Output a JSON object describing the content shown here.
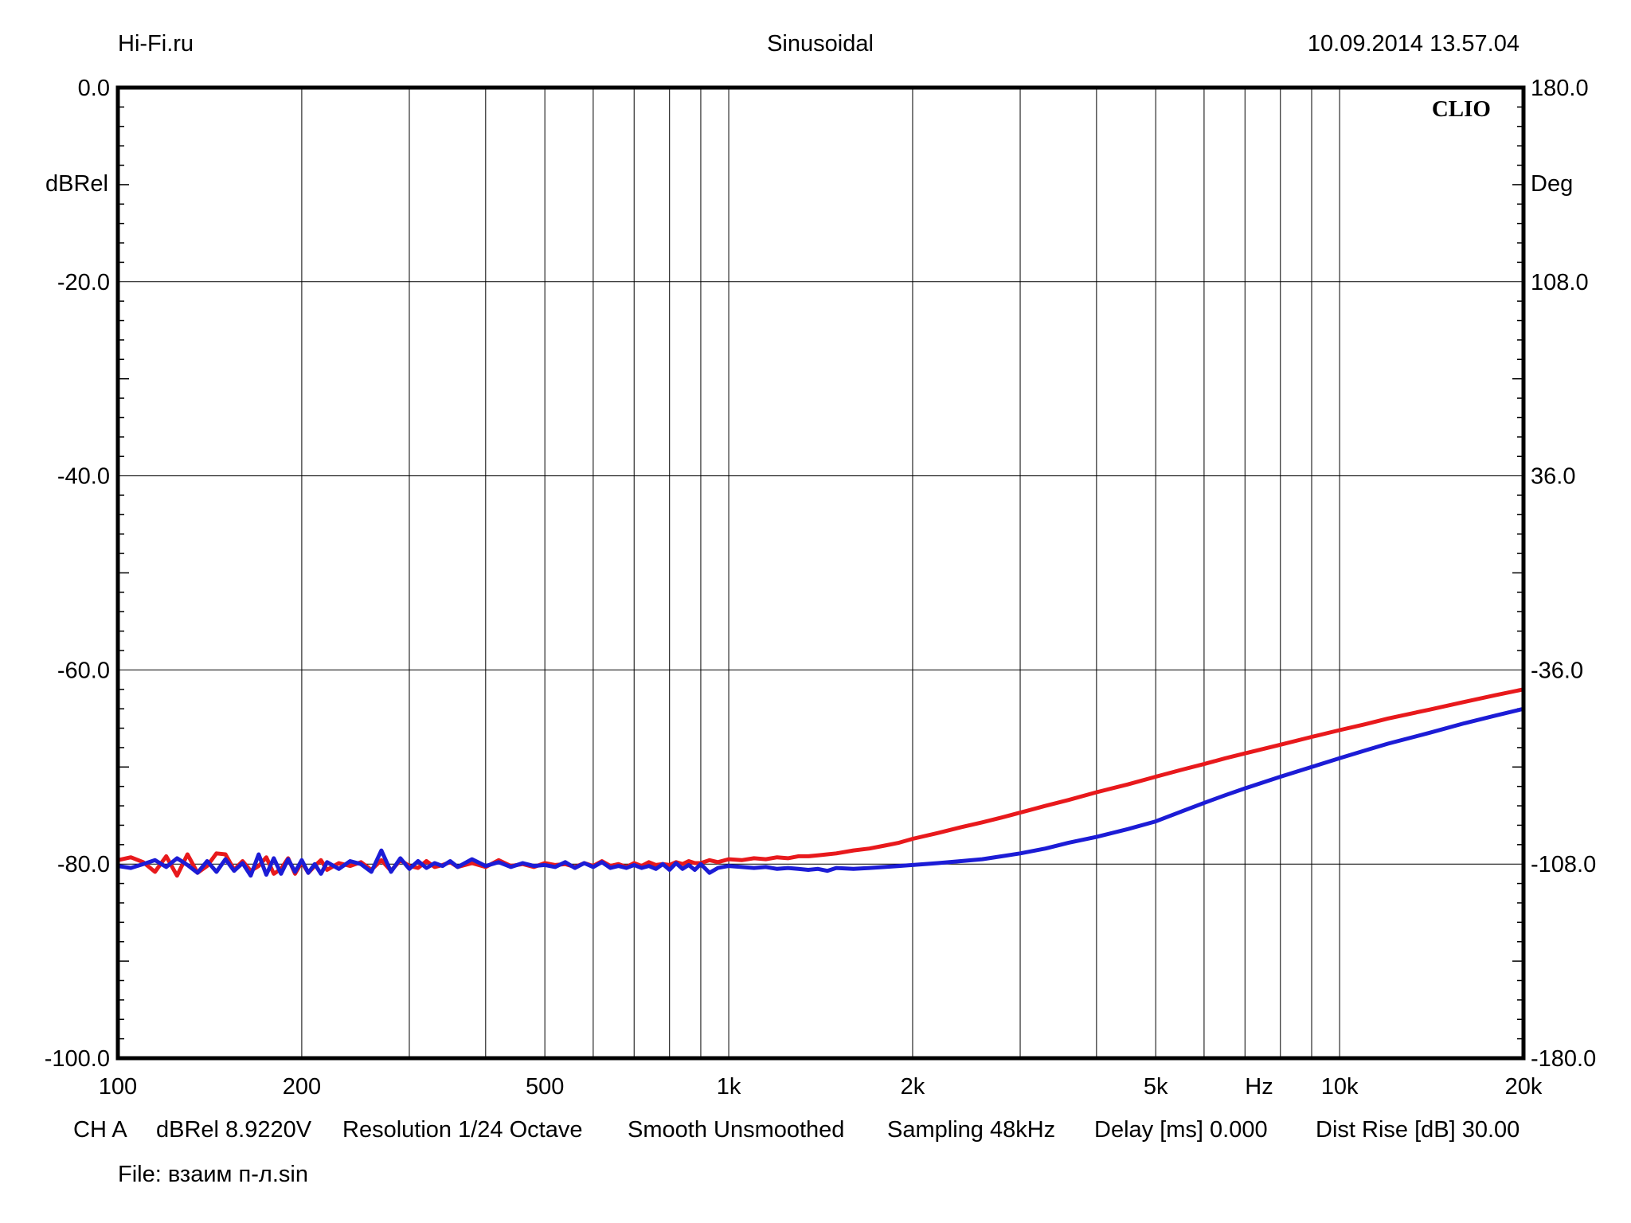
{
  "header": {
    "left": "Hi-Fi.ru",
    "center": "Sinusoidal",
    "right": "10.09.2014 13.57.04"
  },
  "brand": "CLIO",
  "footer": {
    "ch": "CH A",
    "unit": "dBRel 8.9220V",
    "resolution": "Resolution 1/24 Octave",
    "smooth": "Smooth Unsmoothed",
    "sampling": "Sampling 48kHz",
    "delay": "Delay [ms] 0.000",
    "dist": "Dist Rise [dB] 30.00",
    "file": "File: взаим п-л.sin"
  },
  "chart_data": {
    "type": "line",
    "x_scale": "log",
    "xlim": [
      100,
      20000
    ],
    "ylim": [
      -100,
      0
    ],
    "y2lim": [
      -180,
      180
    ],
    "ylabel": "dBRel",
    "y2label": "Deg",
    "xunit_label": "Hz",
    "x_ticks": [
      {
        "v": 100,
        "label": "100"
      },
      {
        "v": 200,
        "label": "200"
      },
      {
        "v": 500,
        "label": "500"
      },
      {
        "v": 1000,
        "label": "1k"
      },
      {
        "v": 2000,
        "label": "2k"
      },
      {
        "v": 5000,
        "label": "5k"
      },
      {
        "v": 10000,
        "label": "10k"
      },
      {
        "v": 20000,
        "label": "20k"
      }
    ],
    "y_ticks": [
      {
        "v": 0,
        "label": "0.0"
      },
      {
        "v": -20,
        "label": "-20.0"
      },
      {
        "v": -40,
        "label": "-40.0"
      },
      {
        "v": -60,
        "label": "-60.0"
      },
      {
        "v": -80,
        "label": "-80.0"
      },
      {
        "v": -100,
        "label": "-100.0"
      }
    ],
    "y2_ticks": [
      {
        "v": 180,
        "label": "180.0"
      },
      {
        "v": 108,
        "label": "108.0"
      },
      {
        "v": 36,
        "label": "36.0"
      },
      {
        "v": -36,
        "label": "-36.0"
      },
      {
        "v": -108,
        "label": "-108.0"
      },
      {
        "v": -180,
        "label": "-180.0"
      }
    ],
    "grid": true,
    "series": [
      {
        "color": "#e8191c",
        "x": [
          100,
          105,
          110,
          115,
          120,
          125,
          130,
          135,
          140,
          145,
          150,
          155,
          160,
          165,
          170,
          175,
          180,
          185,
          190,
          195,
          200,
          205,
          210,
          215,
          220,
          230,
          240,
          250,
          260,
          270,
          280,
          290,
          300,
          310,
          320,
          330,
          340,
          350,
          360,
          380,
          400,
          420,
          440,
          460,
          480,
          500,
          520,
          540,
          560,
          580,
          600,
          620,
          640,
          660,
          680,
          700,
          720,
          740,
          760,
          780,
          800,
          820,
          840,
          860,
          880,
          900,
          930,
          960,
          1000,
          1050,
          1100,
          1150,
          1200,
          1250,
          1300,
          1350,
          1400,
          1450,
          1500,
          1600,
          1700,
          1800,
          1900,
          2000,
          2200,
          2400,
          2600,
          2800,
          3000,
          3300,
          3600,
          4000,
          4500,
          5000,
          5500,
          6000,
          6500,
          7000,
          8000,
          9000,
          10000,
          11000,
          12000,
          14000,
          16000,
          18000,
          20000
        ],
        "y": [
          -79.6,
          -79.3,
          -79.8,
          -80.8,
          -79.2,
          -81.2,
          -79.0,
          -80.9,
          -80.2,
          -78.9,
          -79.0,
          -80.6,
          -79.7,
          -80.7,
          -80.2,
          -79.3,
          -81.0,
          -80.5,
          -79.4,
          -81.0,
          -79.8,
          -80.9,
          -80.2,
          -79.6,
          -80.6,
          -79.9,
          -80.2,
          -79.8,
          -80.6,
          -79.6,
          -80.7,
          -79.6,
          -80.2,
          -80.4,
          -79.7,
          -80.3,
          -80.1,
          -79.8,
          -80.3,
          -79.9,
          -80.3,
          -79.6,
          -80.2,
          -80.0,
          -80.3,
          -79.9,
          -80.1,
          -80.0,
          -80.3,
          -79.9,
          -80.2,
          -79.7,
          -80.2,
          -80.0,
          -80.3,
          -79.9,
          -80.2,
          -79.8,
          -80.1,
          -80.0,
          -80.1,
          -79.8,
          -80.0,
          -79.7,
          -79.9,
          -79.9,
          -79.6,
          -79.8,
          -79.5,
          -79.6,
          -79.4,
          -79.5,
          -79.3,
          -79.4,
          -79.2,
          -79.2,
          -79.1,
          -79.0,
          -78.9,
          -78.6,
          -78.4,
          -78.1,
          -77.8,
          -77.4,
          -76.8,
          -76.2,
          -75.7,
          -75.2,
          -74.7,
          -74.0,
          -73.4,
          -72.6,
          -71.8,
          -71.0,
          -70.3,
          -69.7,
          -69.1,
          -68.6,
          -67.7,
          -66.9,
          -66.2,
          -65.6,
          -65.0,
          -64.1,
          -63.3,
          -62.6,
          -62.0
        ]
      },
      {
        "color": "#1c1cd6",
        "x": [
          100,
          105,
          110,
          115,
          120,
          125,
          130,
          135,
          140,
          145,
          150,
          155,
          160,
          165,
          170,
          175,
          180,
          185,
          190,
          195,
          200,
          205,
          210,
          215,
          220,
          230,
          240,
          250,
          260,
          270,
          280,
          290,
          300,
          310,
          320,
          330,
          340,
          350,
          360,
          380,
          400,
          420,
          440,
          460,
          480,
          500,
          520,
          540,
          560,
          580,
          600,
          620,
          640,
          660,
          680,
          700,
          720,
          740,
          760,
          780,
          800,
          820,
          840,
          860,
          880,
          900,
          930,
          960,
          1000,
          1050,
          1100,
          1150,
          1200,
          1250,
          1300,
          1350,
          1400,
          1450,
          1500,
          1600,
          1700,
          1800,
          1900,
          2000,
          2200,
          2400,
          2600,
          2800,
          3000,
          3300,
          3600,
          4000,
          4500,
          5000,
          5500,
          6000,
          6500,
          7000,
          8000,
          9000,
          10000,
          11000,
          12000,
          14000,
          16000,
          18000,
          20000
        ],
        "y": [
          -80.2,
          -80.4,
          -80.0,
          -79.6,
          -80.3,
          -79.4,
          -80.1,
          -80.9,
          -79.7,
          -80.8,
          -79.5,
          -80.7,
          -79.9,
          -81.2,
          -79.0,
          -81.1,
          -79.4,
          -81.0,
          -79.5,
          -80.8,
          -79.6,
          -80.9,
          -80.0,
          -81.0,
          -79.8,
          -80.5,
          -79.7,
          -80.0,
          -80.8,
          -78.6,
          -80.8,
          -79.4,
          -80.5,
          -79.7,
          -80.4,
          -79.9,
          -80.2,
          -79.7,
          -80.3,
          -79.5,
          -80.2,
          -79.8,
          -80.3,
          -79.9,
          -80.2,
          -80.1,
          -80.3,
          -79.8,
          -80.4,
          -79.9,
          -80.3,
          -79.8,
          -80.4,
          -80.2,
          -80.4,
          -80.1,
          -80.4,
          -80.2,
          -80.5,
          -80.0,
          -80.6,
          -79.9,
          -80.5,
          -80.1,
          -80.6,
          -80.0,
          -80.9,
          -80.4,
          -80.2,
          -80.3,
          -80.4,
          -80.3,
          -80.5,
          -80.4,
          -80.5,
          -80.6,
          -80.5,
          -80.7,
          -80.4,
          -80.5,
          -80.4,
          -80.3,
          -80.2,
          -80.1,
          -79.9,
          -79.7,
          -79.5,
          -79.2,
          -78.9,
          -78.4,
          -77.8,
          -77.2,
          -76.4,
          -75.6,
          -74.6,
          -73.7,
          -72.9,
          -72.2,
          -71.0,
          -70.0,
          -69.1,
          -68.3,
          -67.6,
          -66.5,
          -65.5,
          -64.7,
          -64.0
        ]
      }
    ]
  }
}
